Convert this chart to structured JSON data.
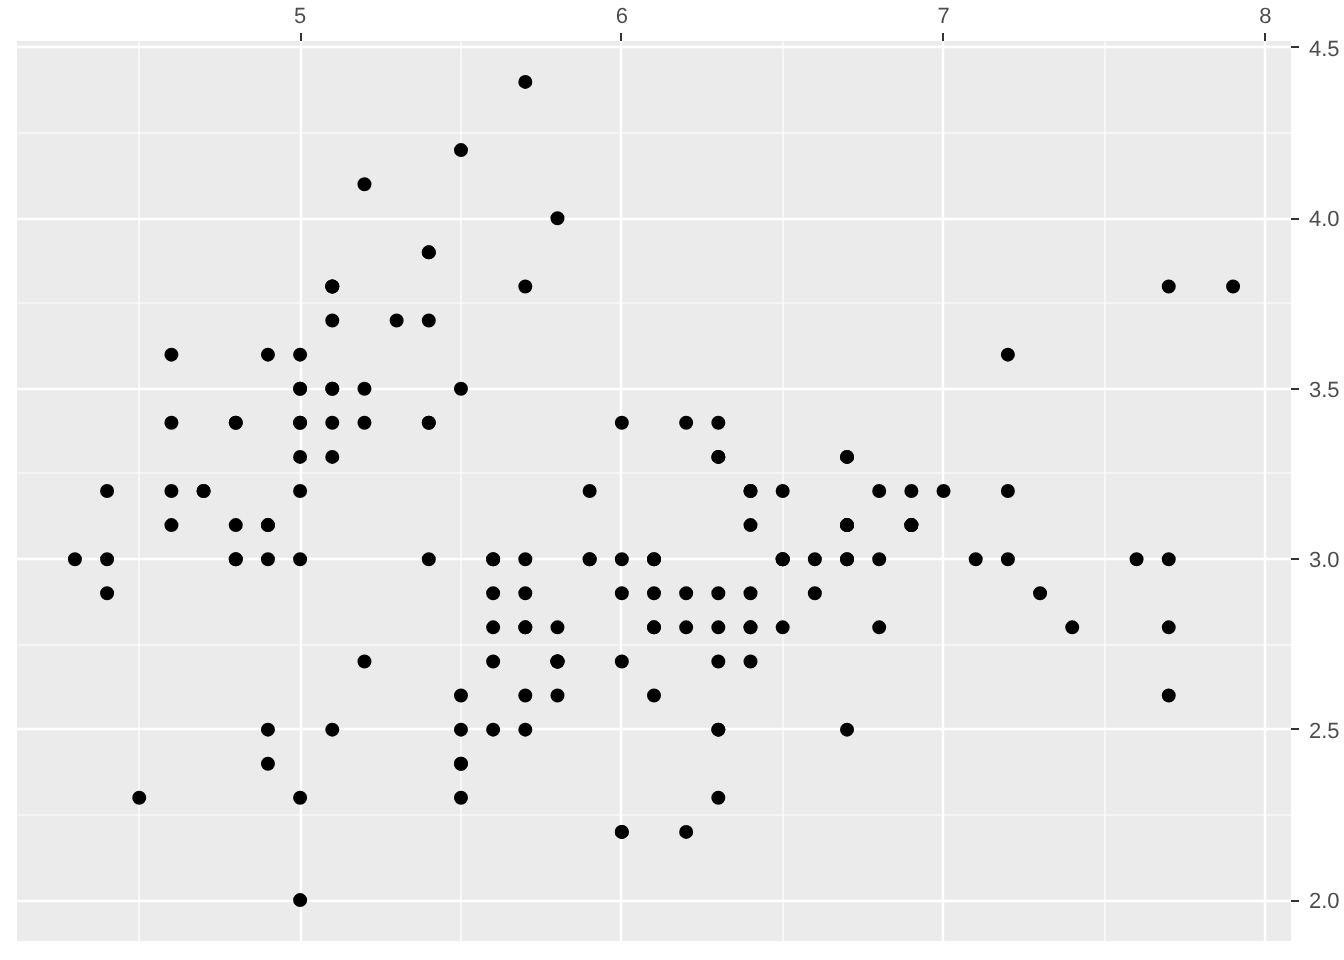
{
  "chart_data": {
    "type": "scatter",
    "marker": "circle",
    "grid": true,
    "xlim": [
      4.12,
      8.08
    ],
    "ylim": [
      1.88,
      4.52
    ],
    "xticks": [
      5,
      6,
      7,
      8
    ],
    "yticks": [
      {
        "value": 2,
        "label": "2.0"
      },
      2.5,
      {
        "value": 3,
        "label": "3.0"
      },
      3.5,
      {
        "value": 4,
        "label": "4.0"
      },
      4.5
    ],
    "series": [
      {
        "color": "#000000",
        "x": [
          5.1,
          4.9,
          4.7,
          4.6,
          5.0,
          5.4,
          4.6,
          5.0,
          4.4,
          4.9,
          5.4,
          4.8,
          4.8,
          4.3,
          5.8,
          5.7,
          5.4,
          5.1,
          5.7,
          5.1,
          5.4,
          5.1,
          4.6,
          5.1,
          4.8,
          5.0,
          5.0,
          5.2,
          5.2,
          4.7,
          4.8,
          5.4,
          5.2,
          5.5,
          4.9,
          5.0,
          5.5,
          4.9,
          4.4,
          5.1,
          5.0,
          4.5,
          4.4,
          5.0,
          5.1,
          4.8,
          5.1,
          4.6,
          5.3,
          5.0,
          7.0,
          6.4,
          6.9,
          5.5,
          6.5,
          5.7,
          6.3,
          4.9,
          6.6,
          5.2,
          5.0,
          5.9,
          6.0,
          6.1,
          5.6,
          6.7,
          5.6,
          5.8,
          6.2,
          5.6,
          5.9,
          6.1,
          6.3,
          6.1,
          6.4,
          6.6,
          6.8,
          6.7,
          6.0,
          5.7,
          5.5,
          5.5,
          5.8,
          6.0,
          5.4,
          6.0,
          6.7,
          6.3,
          5.6,
          5.5,
          5.5,
          6.1,
          5.8,
          5.0,
          5.6,
          5.7,
          5.7,
          6.2,
          5.1,
          5.7,
          6.3,
          5.8,
          7.1,
          6.3,
          6.5,
          7.6,
          4.9,
          7.3,
          6.7,
          7.2,
          6.5,
          6.4,
          6.8,
          5.7,
          5.8,
          6.4,
          6.5,
          7.7,
          7.7,
          6.0,
          6.9,
          5.6,
          7.7,
          6.3,
          6.7,
          7.2,
          6.2,
          6.1,
          6.4,
          7.2,
          7.4,
          7.9,
          6.4,
          6.3,
          6.1,
          7.7,
          6.3,
          6.4,
          6.0,
          6.9,
          6.7,
          6.9,
          5.8,
          6.8,
          6.7,
          6.7,
          6.3,
          6.5,
          6.2,
          5.9
        ],
        "values": [
          3.5,
          3.0,
          3.2,
          3.1,
          3.6,
          3.9,
          3.4,
          3.4,
          2.9,
          3.1,
          3.7,
          3.4,
          3.0,
          3.0,
          4.0,
          4.4,
          3.9,
          3.5,
          3.8,
          3.8,
          3.4,
          3.7,
          3.6,
          3.3,
          3.4,
          3.0,
          3.4,
          3.5,
          3.4,
          3.2,
          3.1,
          3.4,
          4.1,
          4.2,
          3.1,
          3.2,
          3.5,
          3.6,
          3.0,
          3.4,
          3.5,
          2.3,
          3.2,
          3.5,
          3.8,
          3.0,
          3.8,
          3.2,
          3.7,
          3.3,
          3.2,
          3.2,
          3.1,
          2.3,
          2.8,
          2.8,
          3.3,
          2.4,
          2.9,
          2.7,
          2.0,
          3.0,
          2.2,
          2.9,
          2.9,
          3.1,
          3.0,
          2.7,
          2.2,
          2.5,
          3.2,
          2.8,
          2.5,
          2.8,
          2.9,
          3.0,
          2.8,
          3.0,
          2.9,
          2.6,
          2.4,
          2.4,
          2.7,
          2.7,
          3.0,
          3.4,
          3.1,
          2.3,
          3.0,
          2.5,
          2.6,
          3.0,
          2.6,
          2.3,
          2.7,
          3.0,
          2.9,
          2.9,
          2.5,
          2.8,
          3.3,
          2.7,
          3.0,
          2.9,
          3.0,
          3.0,
          2.5,
          2.9,
          2.5,
          3.6,
          3.2,
          2.7,
          3.0,
          2.5,
          2.8,
          3.2,
          3.0,
          3.8,
          2.6,
          2.2,
          3.2,
          2.8,
          2.8,
          2.7,
          3.3,
          3.2,
          2.8,
          3.0,
          2.8,
          3.0,
          2.8,
          3.8,
          2.8,
          2.8,
          2.6,
          3.0,
          3.4,
          3.1,
          3.0,
          3.1,
          3.1,
          3.1,
          2.7,
          3.2,
          3.3,
          3.0,
          2.5,
          3.0,
          3.4,
          3.0
        ]
      }
    ]
  }
}
